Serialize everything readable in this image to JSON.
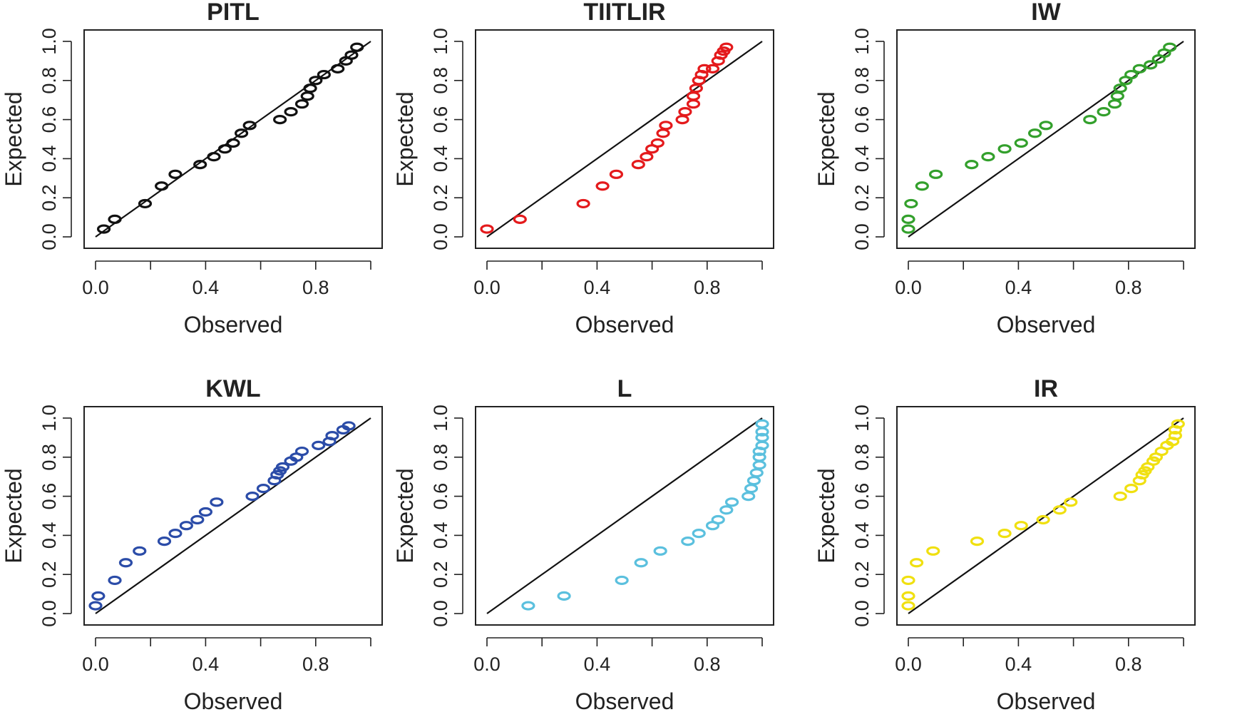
{
  "chart_data": [
    {
      "type": "scatter",
      "title": "PITL",
      "xlabel": "Observed",
      "ylabel": "Expected",
      "xlim": [
        0,
        1
      ],
      "ylim": [
        0,
        1
      ],
      "x_ticks": [
        "0.0",
        "0.4",
        "0.8"
      ],
      "y_ticks": [
        "0.0",
        "0.2",
        "0.4",
        "0.6",
        "0.8",
        "1.0"
      ],
      "color": "#111111",
      "reference_line": "y = x",
      "x": [
        0.03,
        0.07,
        0.18,
        0.24,
        0.29,
        0.38,
        0.43,
        0.47,
        0.5,
        0.53,
        0.56,
        0.67,
        0.71,
        0.75,
        0.77,
        0.78,
        0.8,
        0.83,
        0.88,
        0.91,
        0.93,
        0.95
      ],
      "y": [
        0.04,
        0.09,
        0.17,
        0.26,
        0.32,
        0.37,
        0.41,
        0.45,
        0.48,
        0.53,
        0.57,
        0.6,
        0.64,
        0.68,
        0.72,
        0.76,
        0.8,
        0.83,
        0.86,
        0.9,
        0.93,
        0.97
      ]
    },
    {
      "type": "scatter",
      "title": "TIITLIR",
      "xlabel": "Observed",
      "ylabel": "Expected",
      "xlim": [
        0,
        1
      ],
      "ylim": [
        0,
        1
      ],
      "x_ticks": [
        "0.0",
        "0.4",
        "0.8"
      ],
      "y_ticks": [
        "0.0",
        "0.2",
        "0.4",
        "0.6",
        "0.8",
        "1.0"
      ],
      "color": "#e41a1c",
      "reference_line": "y = x",
      "x": [
        0.0,
        0.12,
        0.35,
        0.42,
        0.47,
        0.55,
        0.58,
        0.6,
        0.62,
        0.64,
        0.65,
        0.71,
        0.72,
        0.75,
        0.75,
        0.76,
        0.77,
        0.78,
        0.79,
        0.82,
        0.84,
        0.85,
        0.86,
        0.87
      ],
      "y": [
        0.04,
        0.09,
        0.17,
        0.26,
        0.32,
        0.37,
        0.41,
        0.45,
        0.48,
        0.53,
        0.57,
        0.6,
        0.64,
        0.68,
        0.72,
        0.76,
        0.8,
        0.83,
        0.86,
        0.86,
        0.9,
        0.93,
        0.95,
        0.97
      ]
    },
    {
      "type": "scatter",
      "title": "IW",
      "xlabel": "Observed",
      "ylabel": "Expected",
      "xlim": [
        0,
        1
      ],
      "ylim": [
        0,
        1
      ],
      "x_ticks": [
        "0.0",
        "0.4",
        "0.8"
      ],
      "y_ticks": [
        "0.0",
        "0.2",
        "0.4",
        "0.6",
        "0.8",
        "1.0"
      ],
      "color": "#33a02c",
      "reference_line": "y = x",
      "x": [
        0.0,
        0.0,
        0.01,
        0.05,
        0.1,
        0.23,
        0.29,
        0.35,
        0.41,
        0.46,
        0.5,
        0.66,
        0.71,
        0.75,
        0.76,
        0.77,
        0.79,
        0.81,
        0.84,
        0.88,
        0.91,
        0.93,
        0.95
      ],
      "y": [
        0.04,
        0.09,
        0.17,
        0.26,
        0.32,
        0.37,
        0.41,
        0.45,
        0.48,
        0.53,
        0.57,
        0.6,
        0.64,
        0.68,
        0.72,
        0.76,
        0.8,
        0.83,
        0.86,
        0.88,
        0.91,
        0.94,
        0.97
      ]
    },
    {
      "type": "scatter",
      "title": "KWL",
      "xlabel": "Observed",
      "ylabel": "Expected",
      "xlim": [
        0,
        1
      ],
      "ylim": [
        0,
        1
      ],
      "x_ticks": [
        "0.0",
        "0.4",
        "0.8"
      ],
      "y_ticks": [
        "0.0",
        "0.2",
        "0.4",
        "0.6",
        "0.8",
        "1.0"
      ],
      "color": "#2b4ca8",
      "reference_line": "y = x",
      "x": [
        0.0,
        0.01,
        0.07,
        0.11,
        0.16,
        0.25,
        0.29,
        0.33,
        0.37,
        0.4,
        0.44,
        0.57,
        0.61,
        0.65,
        0.66,
        0.67,
        0.68,
        0.71,
        0.73,
        0.75,
        0.81,
        0.85,
        0.86,
        0.9,
        0.92
      ],
      "y": [
        0.04,
        0.09,
        0.17,
        0.26,
        0.32,
        0.37,
        0.41,
        0.45,
        0.48,
        0.52,
        0.57,
        0.6,
        0.64,
        0.68,
        0.71,
        0.73,
        0.75,
        0.78,
        0.8,
        0.83,
        0.86,
        0.88,
        0.91,
        0.94,
        0.96
      ]
    },
    {
      "type": "scatter",
      "title": "L",
      "xlabel": "Observed",
      "ylabel": "Expected",
      "xlim": [
        0,
        1
      ],
      "ylim": [
        0,
        1
      ],
      "x_ticks": [
        "0.0",
        "0.4",
        "0.8"
      ],
      "y_ticks": [
        "0.0",
        "0.2",
        "0.4",
        "0.6",
        "0.8",
        "1.0"
      ],
      "color": "#5bc0de",
      "reference_line": "y = x",
      "x": [
        0.15,
        0.28,
        0.49,
        0.56,
        0.63,
        0.73,
        0.77,
        0.82,
        0.84,
        0.87,
        0.89,
        0.95,
        0.96,
        0.97,
        0.98,
        0.99,
        0.99,
        0.99,
        1.0,
        1.0,
        1.0,
        1.0
      ],
      "y": [
        0.04,
        0.09,
        0.17,
        0.26,
        0.32,
        0.37,
        0.41,
        0.45,
        0.48,
        0.53,
        0.57,
        0.6,
        0.64,
        0.68,
        0.72,
        0.76,
        0.8,
        0.83,
        0.86,
        0.9,
        0.93,
        0.97
      ]
    },
    {
      "type": "scatter",
      "title": "IR",
      "xlabel": "Observed",
      "ylabel": "Expected",
      "xlim": [
        0,
        1
      ],
      "ylim": [
        0,
        1
      ],
      "x_ticks": [
        "0.0",
        "0.4",
        "0.8"
      ],
      "y_ticks": [
        "0.0",
        "0.2",
        "0.4",
        "0.6",
        "0.8",
        "1.0"
      ],
      "color": "#f0e010",
      "reference_line": "y = x",
      "x": [
        0.0,
        0.0,
        0.0,
        0.03,
        0.09,
        0.25,
        0.35,
        0.41,
        0.49,
        0.55,
        0.59,
        0.77,
        0.81,
        0.84,
        0.85,
        0.86,
        0.87,
        0.89,
        0.9,
        0.92,
        0.94,
        0.96,
        0.97,
        0.97,
        0.98
      ],
      "y": [
        0.04,
        0.09,
        0.17,
        0.26,
        0.32,
        0.37,
        0.41,
        0.45,
        0.48,
        0.53,
        0.57,
        0.6,
        0.64,
        0.68,
        0.71,
        0.73,
        0.75,
        0.78,
        0.8,
        0.83,
        0.86,
        0.88,
        0.91,
        0.94,
        0.97
      ]
    }
  ]
}
